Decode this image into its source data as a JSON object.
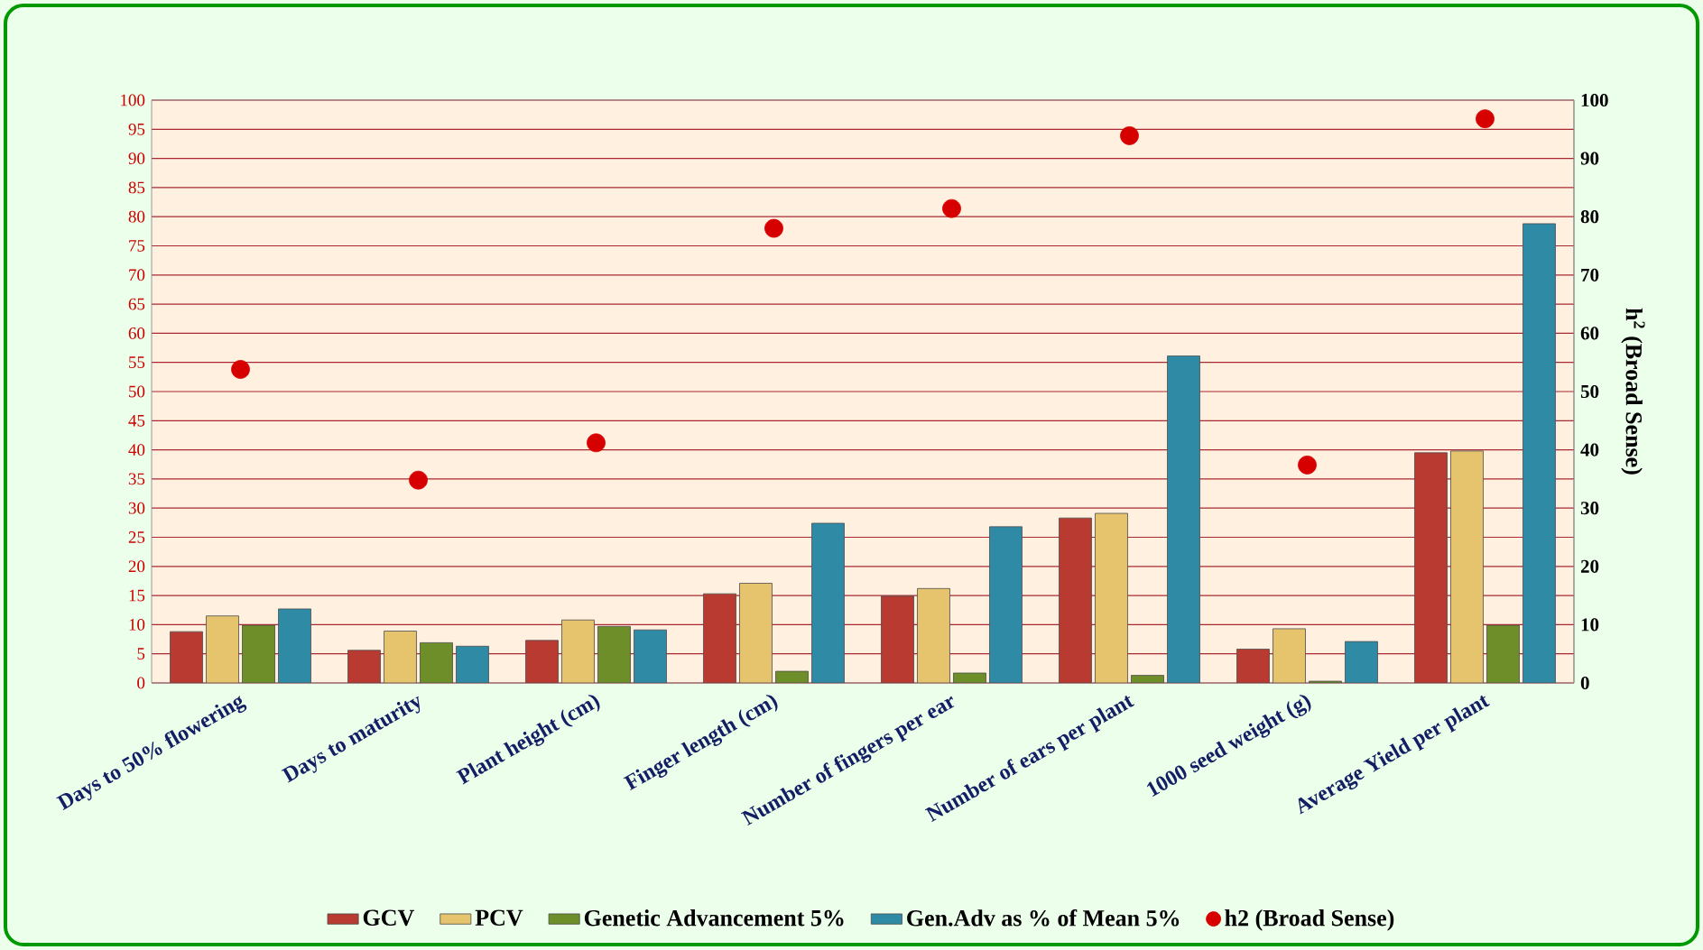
{
  "chart_data": {
    "type": "bar",
    "categories": [
      "Days to 50% flowering",
      "Days to maturity",
      "Plant height (cm)",
      "Finger length (cm)",
      "Number of fingers per ear",
      "Number of ears per plant",
      "1000 seed weight (g)",
      "Average Yield per plant"
    ],
    "ylim": [
      0,
      100
    ],
    "yticks": [
      0,
      5,
      10,
      15,
      20,
      25,
      30,
      35,
      40,
      45,
      50,
      55,
      60,
      65,
      70,
      75,
      80,
      85,
      90,
      95,
      100
    ],
    "y2lim": [
      0,
      100
    ],
    "y2ticks": [
      0,
      10,
      20,
      30,
      40,
      50,
      60,
      70,
      80,
      90,
      100
    ],
    "y2label": "h$^{2}$ (Broad Sense)",
    "grid": "y",
    "legend": "bottom",
    "series": [
      {
        "name": "GCV",
        "color": "#b83a30",
        "values": [
          8.8,
          5.6,
          7.3,
          15.3,
          14.9,
          28.3,
          5.8,
          39.5
        ]
      },
      {
        "name": "PCV",
        "color": "#e6c46e",
        "values": [
          11.5,
          8.9,
          10.8,
          17.1,
          16.2,
          29.1,
          9.3,
          39.8
        ]
      },
      {
        "name": "Genetic Advancement 5%",
        "color": "#6e8e2a",
        "values": [
          9.9,
          6.9,
          9.7,
          2.0,
          1.7,
          1.3,
          0.3,
          9.9
        ]
      },
      {
        "name": "Gen.Adv as % of Mean 5%",
        "color": "#2f8aa5",
        "values": [
          12.7,
          6.3,
          9.1,
          27.4,
          26.8,
          56.1,
          7.1,
          78.8
        ]
      },
      {
        "name": "h2 (Broad Sense)",
        "type": "scatter",
        "axis": "y2",
        "marker": "circle",
        "color": "#d60000",
        "values": [
          53.8,
          34.8,
          41.2,
          78.0,
          81.4,
          93.9,
          37.4,
          96.8
        ]
      }
    ]
  }
}
